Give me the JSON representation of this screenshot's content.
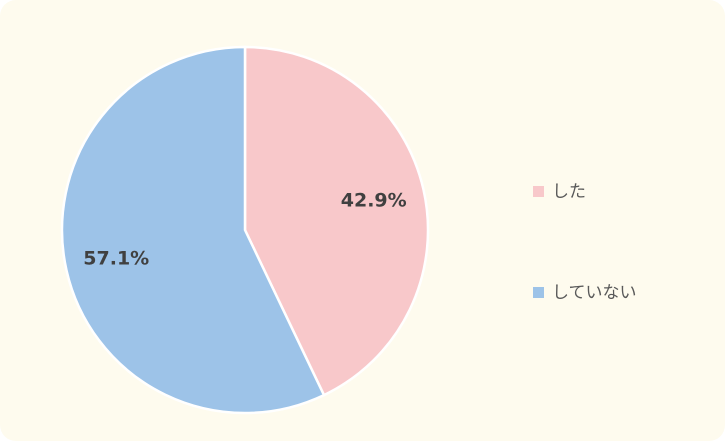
{
  "chart_data": {
    "type": "pie",
    "categories": [
      "した",
      "していない"
    ],
    "values": [
      42.9,
      57.1
    ],
    "value_labels": [
      "42.9%",
      "57.1%"
    ],
    "colors": [
      "#f8c8ca",
      "#9dc3e8"
    ]
  }
}
